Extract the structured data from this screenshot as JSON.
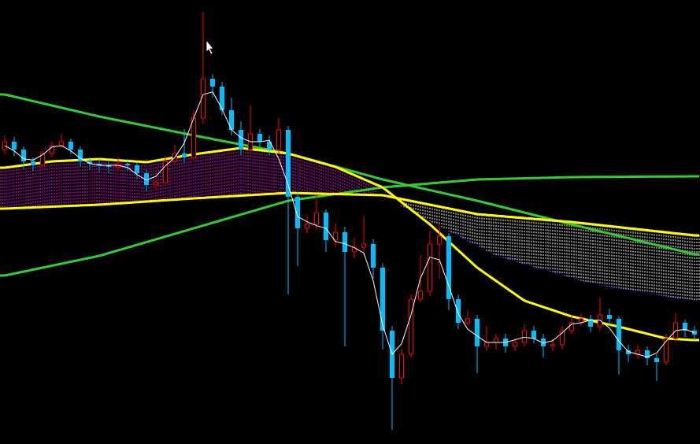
{
  "chart_data": {
    "type": "candlestick",
    "title": "",
    "xlabel": "",
    "ylabel": "",
    "grid": false,
    "legend": "none",
    "background": "#000000",
    "colors": {
      "up": "#ff0000",
      "down": "#00bfff",
      "fast_ma": "#ffffff",
      "ma_yellow": "#ffff00",
      "ma_green": "#33cc33",
      "cloud_up": "#ff00ff",
      "cloud_down": "#ffffff",
      "cloud_edge": "#0000ff"
    },
    "candles": [
      [
        374,
        392,
        368,
        384
      ],
      [
        384,
        390,
        366,
        374
      ],
      [
        374,
        378,
        350,
        359
      ],
      [
        359,
        364,
        346,
        354
      ],
      [
        354,
        374,
        350,
        369
      ],
      [
        369,
        384,
        364,
        379
      ],
      [
        379,
        394,
        376,
        384
      ],
      [
        384,
        388,
        368,
        374
      ],
      [
        374,
        378,
        352,
        359
      ],
      [
        359,
        364,
        348,
        356
      ],
      [
        356,
        362,
        346,
        354
      ],
      [
        354,
        360,
        344,
        352
      ],
      [
        352,
        364,
        346,
        356
      ],
      [
        356,
        362,
        346,
        354
      ],
      [
        354,
        358,
        336,
        344
      ],
      [
        344,
        348,
        320,
        329
      ],
      [
        329,
        340,
        322,
        332
      ],
      [
        332,
        366,
        328,
        359
      ],
      [
        359,
        380,
        354,
        369
      ],
      [
        369,
        400,
        356,
        364
      ],
      [
        364,
        424,
        358,
        414
      ],
      [
        414,
        549,
        406,
        464
      ],
      [
        464,
        470,
        440,
        454
      ],
      [
        454,
        460,
        418,
        424
      ],
      [
        424,
        440,
        392,
        399
      ],
      [
        399,
        410,
        366,
        374
      ],
      [
        374,
        430,
        368,
        394
      ],
      [
        394,
        400,
        376,
        384
      ],
      [
        384,
        392,
        366,
        374
      ],
      [
        374,
        414,
        368,
        399
      ],
      [
        399,
        404,
        190,
        314
      ],
      [
        314,
        320,
        226,
        274
      ],
      [
        274,
        290,
        268,
        279
      ],
      [
        279,
        316,
        272,
        294
      ],
      [
        294,
        298,
        244,
        259
      ],
      [
        259,
        280,
        250,
        269
      ],
      [
        269,
        276,
        124,
        244
      ],
      [
        244,
        262,
        236,
        250
      ],
      [
        250,
        290,
        240,
        254
      ],
      [
        254,
        260,
        210,
        224
      ],
      [
        224,
        230,
        120,
        144
      ],
      [
        144,
        150,
        18,
        84
      ],
      [
        84,
        120,
        76,
        114
      ],
      [
        114,
        190,
        110,
        184
      ],
      [
        184,
        240,
        180,
        194
      ],
      [
        194,
        270,
        188,
        254
      ],
      [
        254,
        280,
        210,
        264
      ],
      [
        264,
        268,
        170,
        184
      ],
      [
        184,
        190,
        146,
        154
      ],
      [
        154,
        170,
        150,
        159
      ],
      [
        159,
        164,
        90,
        124
      ],
      [
        124,
        150,
        118,
        129
      ],
      [
        129,
        140,
        120,
        134
      ],
      [
        134,
        140,
        116,
        124
      ],
      [
        124,
        134,
        118,
        129
      ],
      [
        129,
        152,
        124,
        144
      ],
      [
        144,
        150,
        128,
        134
      ],
      [
        134,
        140,
        110,
        124
      ],
      [
        124,
        134,
        118,
        126
      ],
      [
        126,
        150,
        120,
        144
      ],
      [
        144,
        164,
        140,
        154
      ],
      [
        154,
        166,
        150,
        159
      ],
      [
        159,
        164,
        142,
        149
      ],
      [
        149,
        186,
        144,
        164
      ],
      [
        164,
        172,
        150,
        159
      ],
      [
        159,
        162,
        88,
        119
      ],
      [
        119,
        126,
        104,
        114
      ],
      [
        114,
        126,
        108,
        119
      ],
      [
        119,
        124,
        100,
        109
      ],
      [
        109,
        114,
        80,
        104
      ],
      [
        104,
        140,
        100,
        134
      ],
      [
        134,
        166,
        130,
        154
      ],
      [
        154,
        158,
        136,
        144
      ],
      [
        144,
        150,
        132,
        139
      ]
    ],
    "lines": {
      "green_falling": {
        "index": [
          0,
          10,
          20,
          30,
          40,
          50,
          60,
          73
        ],
        "value": [
          444,
          416,
          392,
          369,
          336,
          309,
          279,
          241
        ]
      },
      "green_rising": {
        "index": [
          0,
          10,
          20,
          30,
          40,
          50,
          60,
          73
        ],
        "value": [
          214,
          239,
          274,
          309,
          326,
          336,
          339,
          340
        ]
      },
      "yellow_slow": {
        "index": [
          0,
          10,
          20,
          30,
          40,
          50,
          60,
          73
        ],
        "value": [
          299,
          304,
          312,
          319,
          316,
          292,
          282,
          265
        ]
      },
      "yellow_fast": {
        "index": [
          0,
          5,
          10,
          15,
          20,
          25,
          30,
          35,
          40,
          45,
          50,
          55,
          60,
          65,
          70,
          73
        ],
        "value": [
          351,
          359,
          362,
          358,
          368,
          376,
          369,
          352,
          326,
          279,
          224,
          182,
          162,
          149,
          134,
          132
        ]
      },
      "cloud_edge": {
        "index": [
          42,
          52,
          62,
          73
        ],
        "value": [
          302,
          239,
          204,
          181
        ]
      }
    }
  }
}
